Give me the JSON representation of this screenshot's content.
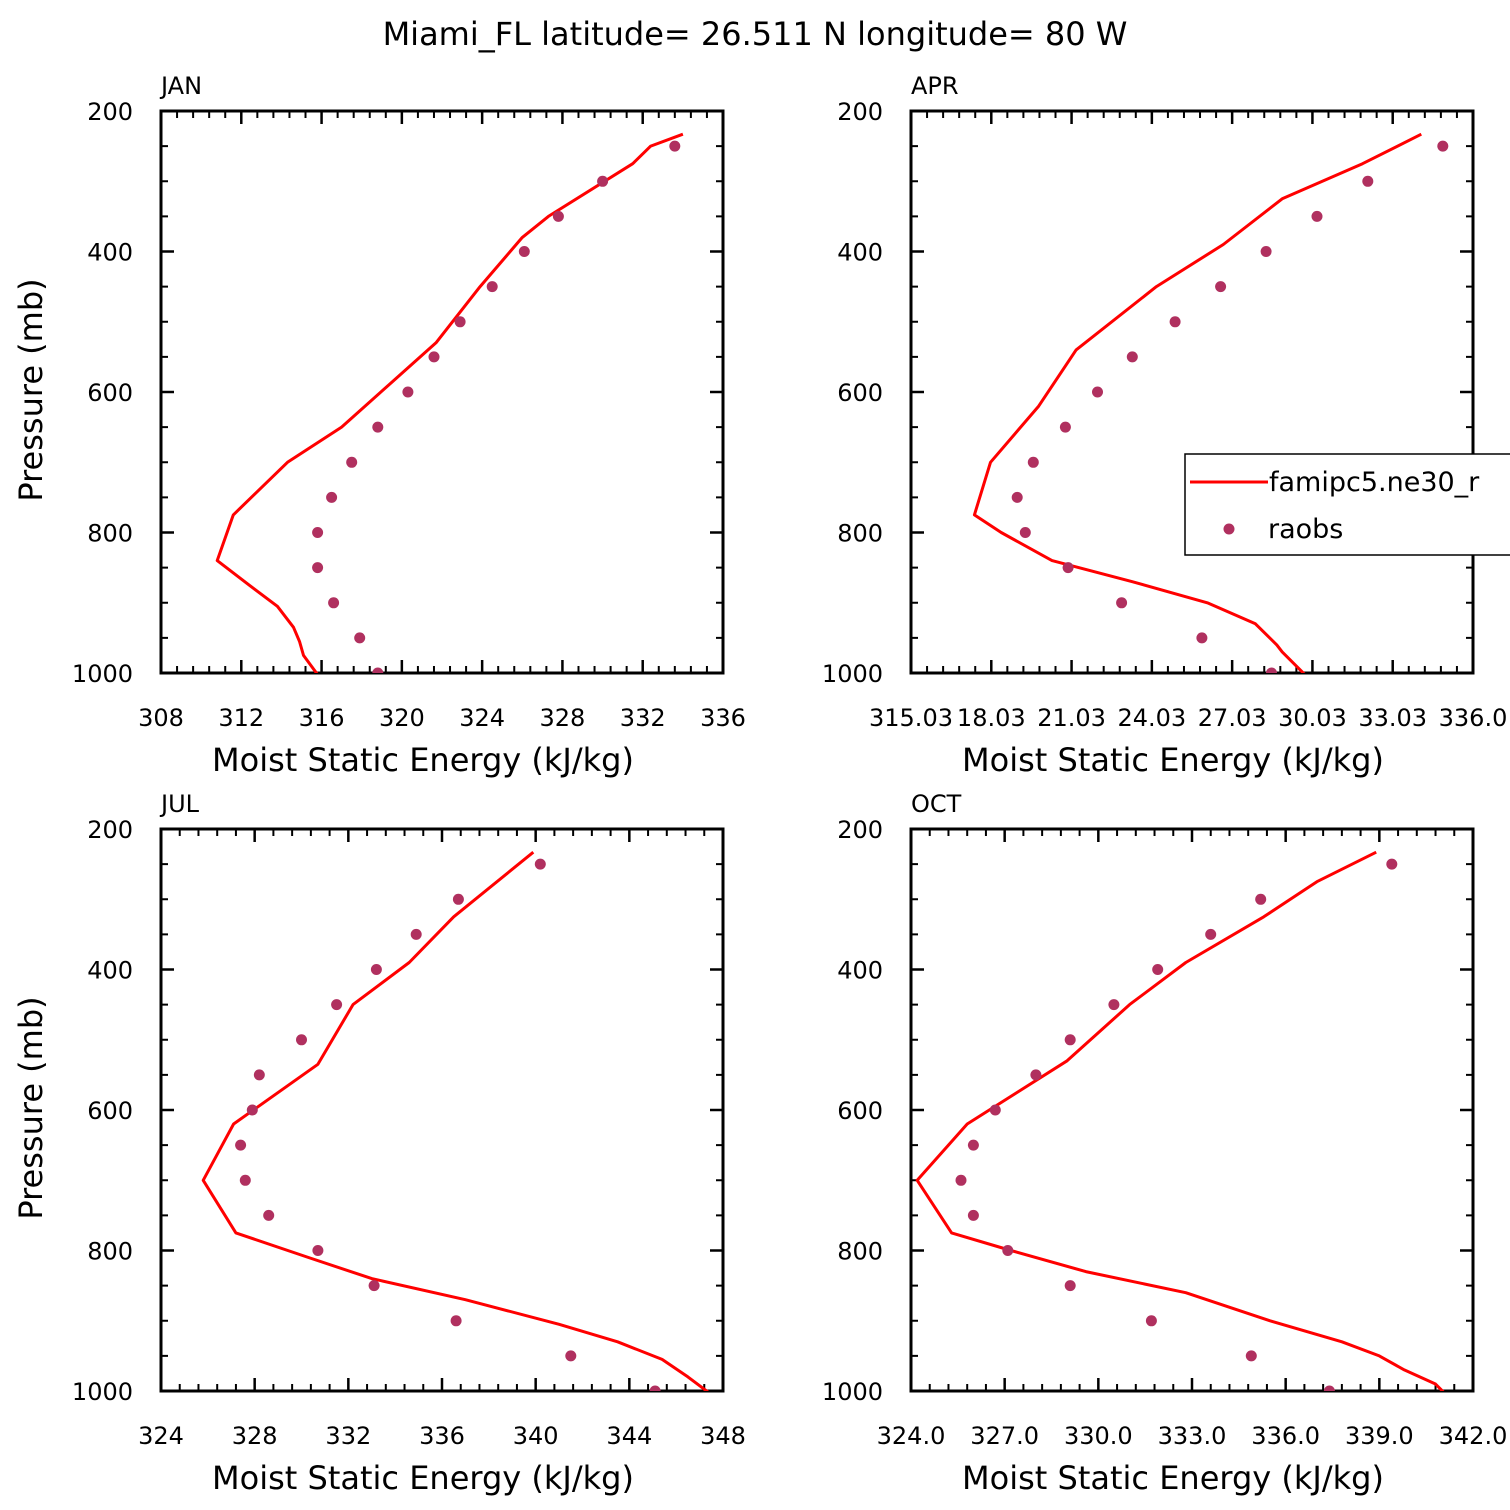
{
  "figure": {
    "title": "Miami_FL  latitude= 26.511 N longitude= 80 W"
  },
  "legend": {
    "location": "APR panel, right",
    "entries": [
      {
        "label": "famipc5.ne30_r",
        "style": "line",
        "color": "#ff0000"
      },
      {
        "label": "raobs",
        "style": "marker",
        "color": "#b0305f"
      }
    ]
  },
  "chart_data": [
    {
      "type": "line",
      "title": "JAN",
      "xlabel": "Moist Static Energy (kJ/kg)",
      "ylabel": "Pressure (mb)",
      "xlim": [
        308,
        336
      ],
      "ylim": [
        1000,
        200
      ],
      "y_inverted": true,
      "xticks": [
        "308",
        "312",
        "316",
        "320",
        "324",
        "328",
        "332",
        "336"
      ],
      "yticks": [
        "200",
        "400",
        "600",
        "800",
        "1000"
      ],
      "series": [
        {
          "name": "famipc5.ne30_r",
          "style": "line",
          "color": "#ff0000",
          "points": [
            [
              334.0,
              233
            ],
            [
              332.4,
              250
            ],
            [
              331.5,
              275
            ],
            [
              327.3,
              350
            ],
            [
              326.0,
              380
            ],
            [
              323.9,
              450
            ],
            [
              321.7,
              530
            ],
            [
              317.0,
              650
            ],
            [
              314.3,
              700
            ],
            [
              311.6,
              775
            ],
            [
              310.8,
              840
            ],
            [
              312.4,
              875
            ],
            [
              313.8,
              905
            ],
            [
              314.6,
              935
            ],
            [
              314.9,
              955
            ],
            [
              315.1,
              975
            ],
            [
              316.0,
              1010
            ]
          ]
        },
        {
          "name": "raobs",
          "style": "scatter",
          "color": "#b0305f",
          "points": [
            [
              333.6,
              250
            ],
            [
              330.0,
              300
            ],
            [
              327.8,
              350
            ],
            [
              326.1,
              400
            ],
            [
              324.5,
              450
            ],
            [
              322.9,
              500
            ],
            [
              321.6,
              550
            ],
            [
              320.3,
              600
            ],
            [
              318.8,
              650
            ],
            [
              317.5,
              700
            ],
            [
              316.5,
              750
            ],
            [
              315.8,
              800
            ],
            [
              315.8,
              850
            ],
            [
              316.6,
              900
            ],
            [
              317.9,
              950
            ],
            [
              318.8,
              1000
            ]
          ]
        }
      ]
    },
    {
      "type": "line",
      "title": "APR",
      "xlabel": "Moist Static Energy (kJ/kg)",
      "ylabel": "",
      "xlim": [
        315.03,
        336.03
      ],
      "ylim": [
        1000,
        200
      ],
      "y_inverted": true,
      "xticks": [
        "315.03",
        "18.03",
        "21.03",
        "24.03",
        "27.03",
        "30.03",
        "33.03",
        "336.0"
      ],
      "yticks": [
        "200",
        "400",
        "600",
        "800",
        "1000"
      ],
      "series": [
        {
          "name": "famipc5.ne30_r",
          "style": "line",
          "color": "#ff0000",
          "points": [
            [
              334.1,
              233
            ],
            [
              331.9,
              275
            ],
            [
              328.9,
              325
            ],
            [
              326.7,
              390
            ],
            [
              324.2,
              450
            ],
            [
              321.2,
              540
            ],
            [
              319.8,
              620
            ],
            [
              318.0,
              700
            ],
            [
              317.4,
              775
            ],
            [
              318.4,
              800
            ],
            [
              320.3,
              840
            ],
            [
              323.3,
              870
            ],
            [
              326.1,
              900
            ],
            [
              327.9,
              930
            ],
            [
              328.7,
              960
            ],
            [
              328.9,
              970
            ],
            [
              329.9,
              1008
            ]
          ]
        },
        {
          "name": "raobs",
          "style": "scatter",
          "color": "#b0305f",
          "points": [
            [
              334.9,
              250
            ],
            [
              332.1,
              300
            ],
            [
              330.2,
              350
            ],
            [
              328.3,
              400
            ],
            [
              326.6,
              450
            ],
            [
              324.9,
              500
            ],
            [
              323.3,
              550
            ],
            [
              322.0,
              600
            ],
            [
              320.8,
              650
            ],
            [
              319.6,
              700
            ],
            [
              319.0,
              750
            ],
            [
              319.3,
              800
            ],
            [
              320.9,
              850
            ],
            [
              322.9,
              900
            ],
            [
              325.9,
              950
            ],
            [
              328.5,
              1000
            ]
          ]
        }
      ]
    },
    {
      "type": "line",
      "title": "JUL",
      "xlabel": "Moist Static Energy (kJ/kg)",
      "ylabel": "Pressure (mb)",
      "xlim": [
        324,
        348
      ],
      "ylim": [
        1000,
        200
      ],
      "y_inverted": true,
      "xticks": [
        "324",
        "328",
        "332",
        "336",
        "340",
        "344",
        "348"
      ],
      "yticks": [
        "200",
        "400",
        "600",
        "800",
        "1000"
      ],
      "series": [
        {
          "name": "famipc5.ne30_r",
          "style": "line",
          "color": "#ff0000",
          "points": [
            [
              339.9,
              233
            ],
            [
              336.5,
              325
            ],
            [
              334.6,
              390
            ],
            [
              332.2,
              450
            ],
            [
              330.7,
              535
            ],
            [
              327.1,
              620
            ],
            [
              325.8,
              700
            ],
            [
              327.2,
              775
            ],
            [
              330.3,
              810
            ],
            [
              333.0,
              840
            ],
            [
              337.0,
              870
            ],
            [
              341.0,
              905
            ],
            [
              343.5,
              930
            ],
            [
              345.4,
              955
            ],
            [
              346.5,
              980
            ],
            [
              347.7,
              1010
            ]
          ]
        },
        {
          "name": "raobs",
          "style": "scatter",
          "color": "#b0305f",
          "points": [
            [
              340.2,
              250
            ],
            [
              336.7,
              300
            ],
            [
              334.9,
              350
            ],
            [
              333.2,
              400
            ],
            [
              331.5,
              450
            ],
            [
              330.0,
              500
            ],
            [
              328.2,
              550
            ],
            [
              327.9,
              600
            ],
            [
              327.4,
              650
            ],
            [
              327.6,
              700
            ],
            [
              328.6,
              750
            ],
            [
              330.7,
              800
            ],
            [
              333.1,
              850
            ],
            [
              336.6,
              900
            ],
            [
              341.5,
              950
            ],
            [
              345.1,
              1000
            ]
          ]
        }
      ]
    },
    {
      "type": "line",
      "title": "OCT",
      "xlabel": "Moist Static Energy (kJ/kg)",
      "ylabel": "",
      "xlim": [
        324.0,
        342.0
      ],
      "ylim": [
        1000,
        200
      ],
      "y_inverted": true,
      "xticks": [
        "324.0",
        "327.0",
        "330.0",
        "333.0",
        "336.0",
        "339.0",
        "342.0"
      ],
      "yticks": [
        "200",
        "400",
        "600",
        "800",
        "1000"
      ],
      "series": [
        {
          "name": "famipc5.ne30_r",
          "style": "line",
          "color": "#ff0000",
          "points": [
            [
              338.9,
              233
            ],
            [
              337.0,
              275
            ],
            [
              335.3,
              325
            ],
            [
              332.8,
              390
            ],
            [
              331.0,
              450
            ],
            [
              329.0,
              530
            ],
            [
              325.8,
              620
            ],
            [
              324.2,
              700
            ],
            [
              325.3,
              775
            ],
            [
              327.2,
              800
            ],
            [
              329.6,
              830
            ],
            [
              332.8,
              860
            ],
            [
              335.5,
              900
            ],
            [
              337.8,
              930
            ],
            [
              339.0,
              950
            ],
            [
              339.8,
              970
            ],
            [
              340.8,
              990
            ],
            [
              341.2,
              1008
            ]
          ]
        },
        {
          "name": "raobs",
          "style": "scatter",
          "color": "#b0305f",
          "points": [
            [
              339.4,
              250
            ],
            [
              335.2,
              300
            ],
            [
              333.6,
              350
            ],
            [
              331.9,
              400
            ],
            [
              330.5,
              450
            ],
            [
              329.1,
              500
            ],
            [
              328.0,
              550
            ],
            [
              326.7,
              600
            ],
            [
              326.0,
              650
            ],
            [
              325.6,
              700
            ],
            [
              326.0,
              750
            ],
            [
              327.1,
              800
            ],
            [
              329.1,
              850
            ],
            [
              331.7,
              900
            ],
            [
              334.9,
              950
            ],
            [
              337.4,
              1000
            ]
          ]
        }
      ]
    }
  ]
}
